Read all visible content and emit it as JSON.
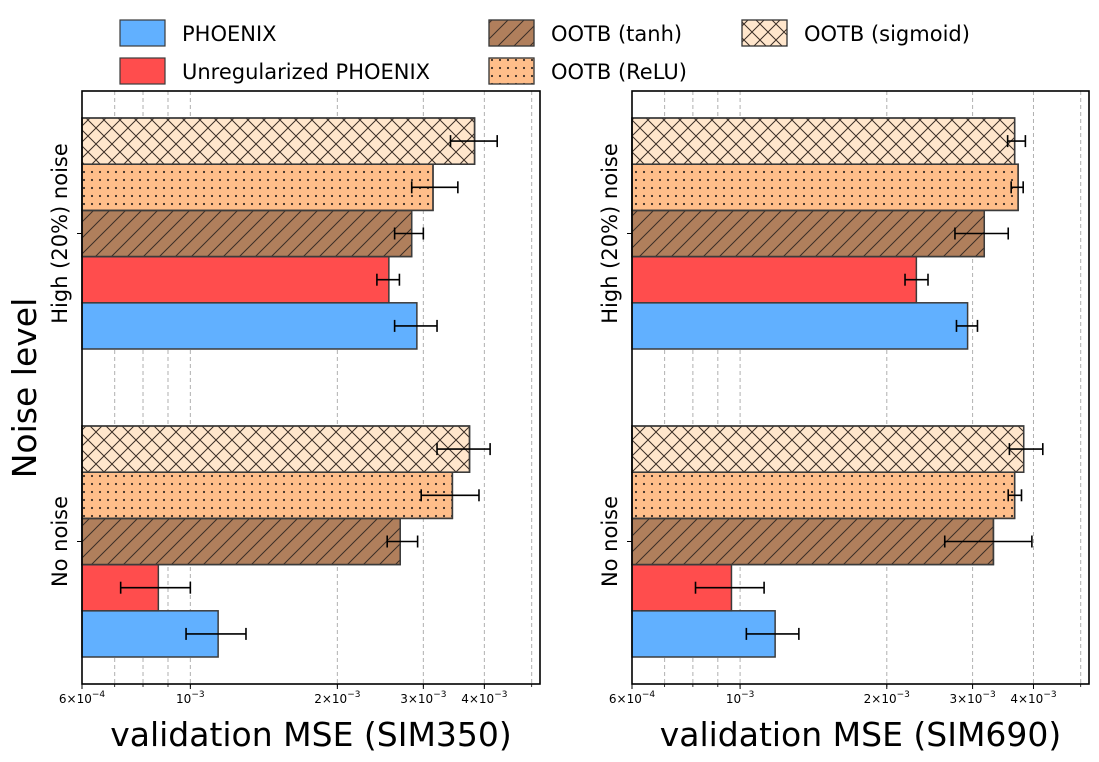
{
  "figure": {
    "ylabel": "Noise level"
  },
  "legend": [
    {
      "name": "PHOENIX",
      "color": "#61b0ff",
      "hatch": "none"
    },
    {
      "name": "Unregularized PHOENIX",
      "color": "#ff4d4d",
      "hatch": "none"
    },
    {
      "name": "OOTB (tanh)",
      "color": "#b07f5c",
      "hatch": "diagonal"
    },
    {
      "name": "OOTB (ReLU)",
      "color": "#ffbe8a",
      "hatch": "dots"
    },
    {
      "name": "OOTB (sigmoid)",
      "color": "#ffe6cc",
      "hatch": "crosshatch"
    }
  ],
  "chart_data": [
    {
      "type": "bar",
      "orientation": "horizontal",
      "xlabel": "validation MSE (SIM350)",
      "xscale": "log",
      "xlim": [
        0.0006,
        0.0052
      ],
      "categories": [
        "No noise",
        "High (20%) noise"
      ],
      "grid": "x-major-and-minor",
      "series": [
        {
          "name": "PHOENIX",
          "values": [
            0.00114,
            0.00291
          ],
          "err_low": [
            0.00098,
            0.00262
          ],
          "err_high": [
            0.0013,
            0.0032
          ]
        },
        {
          "name": "Unregularized PHOENIX",
          "values": [
            0.00086,
            0.00255
          ],
          "err_low": [
            0.00072,
            0.00241
          ],
          "err_high": [
            0.001,
            0.00268
          ]
        },
        {
          "name": "OOTB (tanh)",
          "values": [
            0.00269,
            0.00284
          ],
          "err_low": [
            0.00253,
            0.00262
          ],
          "err_high": [
            0.00292,
            0.003
          ]
        },
        {
          "name": "OOTB (ReLU)",
          "values": [
            0.00344,
            0.00314
          ],
          "err_low": [
            0.00297,
            0.00284
          ],
          "err_high": [
            0.0039,
            0.00353
          ]
        },
        {
          "name": "OOTB (sigmoid)",
          "values": [
            0.00373,
            0.00382
          ],
          "err_low": [
            0.0032,
            0.00341
          ],
          "err_high": [
            0.00411,
            0.00425
          ]
        }
      ],
      "ticks": [
        {
          "value": 0.0006,
          "mantissa": "6",
          "exp": "−4"
        },
        {
          "value": 0.001,
          "mantissa": "",
          "exp": "−3"
        },
        {
          "value": 0.002,
          "mantissa": "2",
          "exp": "−3"
        },
        {
          "value": 0.003,
          "mantissa": "3",
          "exp": "−3"
        },
        {
          "value": 0.004,
          "mantissa": "4",
          "exp": "−3"
        }
      ]
    },
    {
      "type": "bar",
      "orientation": "horizontal",
      "xlabel": "validation MSE (SIM690)",
      "xscale": "log",
      "xlim": [
        0.0006,
        0.0052
      ],
      "categories": [
        "No noise",
        "High (20%) noise"
      ],
      "grid": "x-major-and-minor",
      "series": [
        {
          "name": "PHOENIX",
          "values": [
            0.00118,
            0.00293
          ],
          "err_low": [
            0.00103,
            0.00278
          ],
          "err_high": [
            0.00132,
            0.00307
          ]
        },
        {
          "name": "Unregularized PHOENIX",
          "values": [
            0.00096,
            0.0023
          ],
          "err_low": [
            0.00081,
            0.00218
          ],
          "err_high": [
            0.00112,
            0.00243
          ]
        },
        {
          "name": "OOTB (tanh)",
          "values": [
            0.00331,
            0.00317
          ],
          "err_low": [
            0.00263,
            0.00276
          ],
          "err_high": [
            0.00397,
            0.00355
          ]
        },
        {
          "name": "OOTB (ReLU)",
          "values": [
            0.00366,
            0.00372
          ],
          "err_low": [
            0.00355,
            0.0036
          ],
          "err_high": [
            0.00378,
            0.00381
          ]
        },
        {
          "name": "OOTB (sigmoid)",
          "values": [
            0.00382,
            0.00366
          ],
          "err_low": [
            0.00357,
            0.00354
          ],
          "err_high": [
            0.00418,
            0.00385
          ]
        }
      ],
      "ticks": [
        {
          "value": 0.0006,
          "mantissa": "6",
          "exp": "−4"
        },
        {
          "value": 0.001,
          "mantissa": "",
          "exp": "−3"
        },
        {
          "value": 0.002,
          "mantissa": "2",
          "exp": "−3"
        },
        {
          "value": 0.003,
          "mantissa": "3",
          "exp": "−3"
        },
        {
          "value": 0.004,
          "mantissa": "4",
          "exp": "−3"
        }
      ]
    }
  ]
}
